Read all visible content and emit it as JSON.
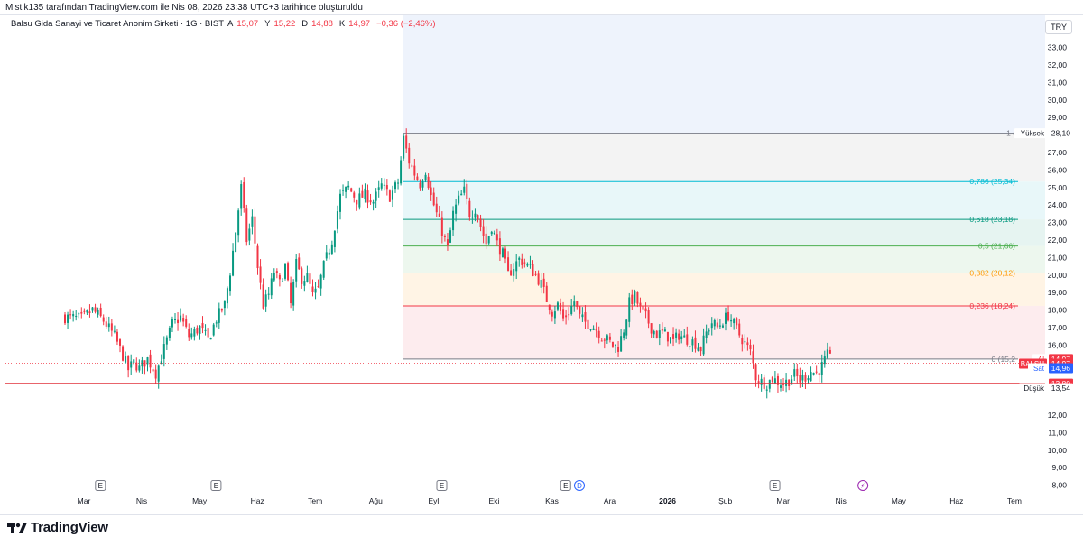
{
  "caption": "Mistik135 tarafından TradingView.com ile Nis 08, 2026 23:38 UTC+3 tarihinde oluşturuldu",
  "legend": {
    "symbol": "Balsu Gida Sanayi ve Ticaret Anonim Sirketi · 1G · BIST",
    "open_label": "A",
    "open": "15,07",
    "high_label": "Y",
    "high": "15,22",
    "low_label": "D",
    "low": "14,88",
    "close_label": "K",
    "close": "14,97",
    "change": "−0,36 (−2,46%)"
  },
  "currency_button": "TRY",
  "brand": "TradingView",
  "colors": {
    "up": "#089981",
    "down": "#f23645",
    "support": "#e0303a"
  },
  "chart_data": {
    "type": "candlestick",
    "ylim": [
      8,
      34
    ],
    "y_ticks": [
      {
        "v": 33,
        "label": "33,00"
      },
      {
        "v": 32,
        "label": "32,00"
      },
      {
        "v": 31,
        "label": "31,00"
      },
      {
        "v": 30,
        "label": "30,00"
      },
      {
        "v": 29,
        "label": "29,00"
      },
      {
        "v": 27,
        "label": "27,00"
      },
      {
        "v": 26,
        "label": "26,00"
      },
      {
        "v": 25,
        "label": "25,00"
      },
      {
        "v": 24,
        "label": "24,00"
      },
      {
        "v": 23,
        "label": "23,00"
      },
      {
        "v": 22,
        "label": "22,00"
      },
      {
        "v": 21,
        "label": "21,00"
      },
      {
        "v": 20,
        "label": "20,00"
      },
      {
        "v": 19,
        "label": "19,00"
      },
      {
        "v": 18,
        "label": "18,00"
      },
      {
        "v": 17,
        "label": "17,00"
      },
      {
        "v": 16,
        "label": "16,00"
      },
      {
        "v": 12,
        "label": "12,00"
      },
      {
        "v": 11,
        "label": "11,00"
      },
      {
        "v": 10,
        "label": "10,00"
      },
      {
        "v": 9,
        "label": "9,00"
      },
      {
        "v": 8,
        "label": "8,00"
      }
    ],
    "x_labels": [
      {
        "i": 0,
        "label": "Mar"
      },
      {
        "i": 21,
        "label": "Nis"
      },
      {
        "i": 42,
        "label": "May"
      },
      {
        "i": 63,
        "label": "Haz"
      },
      {
        "i": 84,
        "label": "Tem"
      },
      {
        "i": 106,
        "label": "Ağu"
      },
      {
        "i": 127,
        "label": "Eyl"
      },
      {
        "i": 149,
        "label": "Eki"
      },
      {
        "i": 170,
        "label": "Kas"
      },
      {
        "i": 191,
        "label": "Ara"
      },
      {
        "i": 212,
        "label": "2026"
      },
      {
        "i": 233,
        "label": "Şub"
      },
      {
        "i": 254,
        "label": "Mar"
      },
      {
        "i": 275,
        "label": "Nis"
      },
      {
        "i": 296,
        "label": "May"
      },
      {
        "i": 317,
        "label": "Haz"
      },
      {
        "i": 338,
        "label": "Tem"
      }
    ],
    "events": [
      {
        "i": 6,
        "label": "E"
      },
      {
        "i": 48,
        "label": "E"
      },
      {
        "i": 130,
        "label": "E"
      },
      {
        "i": 175,
        "label": "E"
      },
      {
        "i": 180,
        "label": "D"
      },
      {
        "i": 251,
        "label": "E"
      },
      {
        "i": 283,
        "label": "⚡"
      }
    ],
    "fib_start_index": 123,
    "fib_levels": [
      {
        "ratio": "1",
        "value": 28.1,
        "label": "1 (",
        "color": "#787b86",
        "fill": "#f3f3f3"
      },
      {
        "ratio": "0.786",
        "value": 25.34,
        "label": "0,786 (25,34)",
        "color": "#00bcd4",
        "fill": "#e8f7f9"
      },
      {
        "ratio": "0.618",
        "value": 23.18,
        "label": "0,618 (23,18)",
        "color": "#089981",
        "fill": "#e6f4f1"
      },
      {
        "ratio": "0.5",
        "value": 21.66,
        "label": "0,5 (21,66)",
        "color": "#4caf50",
        "fill": "#edf7ee"
      },
      {
        "ratio": "0.382",
        "value": 20.12,
        "label": "0,382 (20,12)",
        "color": "#ff9800",
        "fill": "#fff4e5"
      },
      {
        "ratio": "0.236",
        "value": 18.24,
        "label": "0,236 (18,24)",
        "color": "#f23645",
        "fill": "#fdecee"
      },
      {
        "ratio": "0",
        "value": 15.2,
        "label": "0 (15,2",
        "color": "#787b86"
      }
    ],
    "fib_top_fill": "#eef3fc",
    "support_line": 13.8,
    "current_price": 14.97,
    "price_labels": [
      {
        "v": 28.1,
        "text": "28,10",
        "tag": "Yüksek",
        "bg": "#ffffff",
        "fg": "#131722",
        "tagbg": "#ffffff"
      },
      {
        "v": 15.2,
        "text": "14,97",
        "tag": "Al",
        "bg": "#f23645",
        "fg": "#ffffff",
        "tagbg": "#ffffff",
        "tagfg": "#f23645"
      },
      {
        "v": 14.94,
        "text": "14,97",
        "tag": "BALSU",
        "bg": "#f23645",
        "fg": "#ffffff",
        "tagbg": "#f23645",
        "tagfg": "#ffffff"
      },
      {
        "v": 14.68,
        "text": "14,96",
        "tag": "Sat",
        "bg": "#2962ff",
        "fg": "#ffffff",
        "tagbg": "#ffffff",
        "tagfg": "#2962ff"
      },
      {
        "v": 13.8,
        "text": "13,80",
        "bg": "#f23645",
        "fg": "#ffffff"
      },
      {
        "v": 13.54,
        "text": "13,54",
        "tag": "Düşük",
        "bg": "#ffffff",
        "fg": "#131722",
        "tagbg": "#ffffff"
      }
    ],
    "price_path": [
      [
        0,
        17.6
      ],
      [
        6,
        17.5
      ],
      [
        10,
        18.0
      ],
      [
        14,
        17.4
      ],
      [
        18,
        16.5
      ],
      [
        21,
        15.4
      ],
      [
        23,
        14.6
      ],
      [
        25,
        15.0
      ],
      [
        27,
        14.7
      ],
      [
        30,
        15.2
      ],
      [
        33,
        14.4
      ],
      [
        36,
        15.8
      ],
      [
        39,
        17.2
      ],
      [
        42,
        17.6
      ],
      [
        45,
        16.5
      ],
      [
        49,
        17.0
      ],
      [
        52,
        16.3
      ],
      [
        55,
        17.5
      ],
      [
        58,
        18.3
      ],
      [
        60,
        20.2
      ],
      [
        62,
        22.5
      ],
      [
        64,
        25.0
      ],
      [
        66,
        22.0
      ],
      [
        68,
        23.2
      ],
      [
        70,
        20.5
      ],
      [
        72,
        18.3
      ],
      [
        74,
        18.9
      ],
      [
        76,
        20.2
      ],
      [
        78,
        19.5
      ],
      [
        80,
        20.5
      ],
      [
        82,
        18.3
      ],
      [
        84,
        20.6
      ],
      [
        86,
        19.8
      ],
      [
        88,
        19.9
      ],
      [
        90,
        18.8
      ],
      [
        92,
        19.2
      ],
      [
        94,
        20.5
      ],
      [
        97,
        22.0
      ],
      [
        100,
        24.5
      ],
      [
        103,
        25.0
      ],
      [
        106,
        24.3
      ],
      [
        109,
        24.6
      ],
      [
        112,
        24.2
      ],
      [
        115,
        25.1
      ],
      [
        118,
        24.5
      ],
      [
        121,
        25.3
      ],
      [
        123,
        27.8
      ],
      [
        125,
        26.5
      ],
      [
        127,
        25.8
      ],
      [
        129,
        25.2
      ],
      [
        131,
        26.0
      ],
      [
        133,
        24.5
      ],
      [
        135,
        23.5
      ],
      [
        137,
        22.5
      ],
      [
        139,
        21.5
      ],
      [
        141,
        23.5
      ],
      [
        143,
        24.3
      ],
      [
        145,
        24.8
      ],
      [
        147,
        23.5
      ],
      [
        149,
        23.8
      ],
      [
        151,
        22.8
      ],
      [
        153,
        21.8
      ],
      [
        155,
        22.8
      ],
      [
        157,
        21.8
      ],
      [
        159,
        21.2
      ],
      [
        161,
        20.0
      ],
      [
        163,
        20.5
      ],
      [
        165,
        20.9
      ],
      [
        167,
        20.7
      ],
      [
        169,
        20.4
      ],
      [
        171,
        20.0
      ],
      [
        173,
        19.5
      ],
      [
        175,
        18.6
      ],
      [
        177,
        17.9
      ],
      [
        179,
        18.3
      ],
      [
        181,
        17.5
      ],
      [
        183,
        17.9
      ],
      [
        185,
        18.5
      ],
      [
        187,
        17.6
      ],
      [
        189,
        17.3
      ],
      [
        191,
        17.2
      ],
      [
        193,
        16.9
      ],
      [
        195,
        16.5
      ],
      [
        197,
        16.3
      ],
      [
        199,
        16.0
      ],
      [
        201,
        15.9
      ],
      [
        203,
        16.9
      ],
      [
        205,
        18.4
      ],
      [
        207,
        18.8
      ],
      [
        209,
        18.0
      ],
      [
        211,
        17.6
      ],
      [
        213,
        17.0
      ],
      [
        215,
        16.6
      ],
      [
        217,
        16.7
      ],
      [
        219,
        16.5
      ],
      [
        221,
        16.2
      ],
      [
        223,
        16.6
      ],
      [
        225,
        16.4
      ],
      [
        227,
        16.3
      ],
      [
        229,
        16.1
      ],
      [
        231,
        15.8
      ],
      [
        233,
        16.7
      ],
      [
        235,
        17.3
      ],
      [
        237,
        17.0
      ],
      [
        239,
        17.4
      ],
      [
        241,
        17.7
      ],
      [
        243,
        17.2
      ],
      [
        245,
        16.6
      ],
      [
        247,
        16.1
      ],
      [
        249,
        15.6
      ],
      [
        251,
        14.2
      ],
      [
        253,
        13.9
      ],
      [
        255,
        13.8
      ],
      [
        257,
        14.1
      ],
      [
        259,
        13.9
      ],
      [
        261,
        13.8
      ],
      [
        263,
        14.0
      ],
      [
        265,
        14.3
      ],
      [
        267,
        14.0
      ],
      [
        269,
        14.2
      ],
      [
        271,
        14.5
      ],
      [
        273,
        14.4
      ],
      [
        275,
        14.8
      ],
      [
        277,
        15.4
      ],
      [
        279,
        14.97
      ]
    ]
  }
}
